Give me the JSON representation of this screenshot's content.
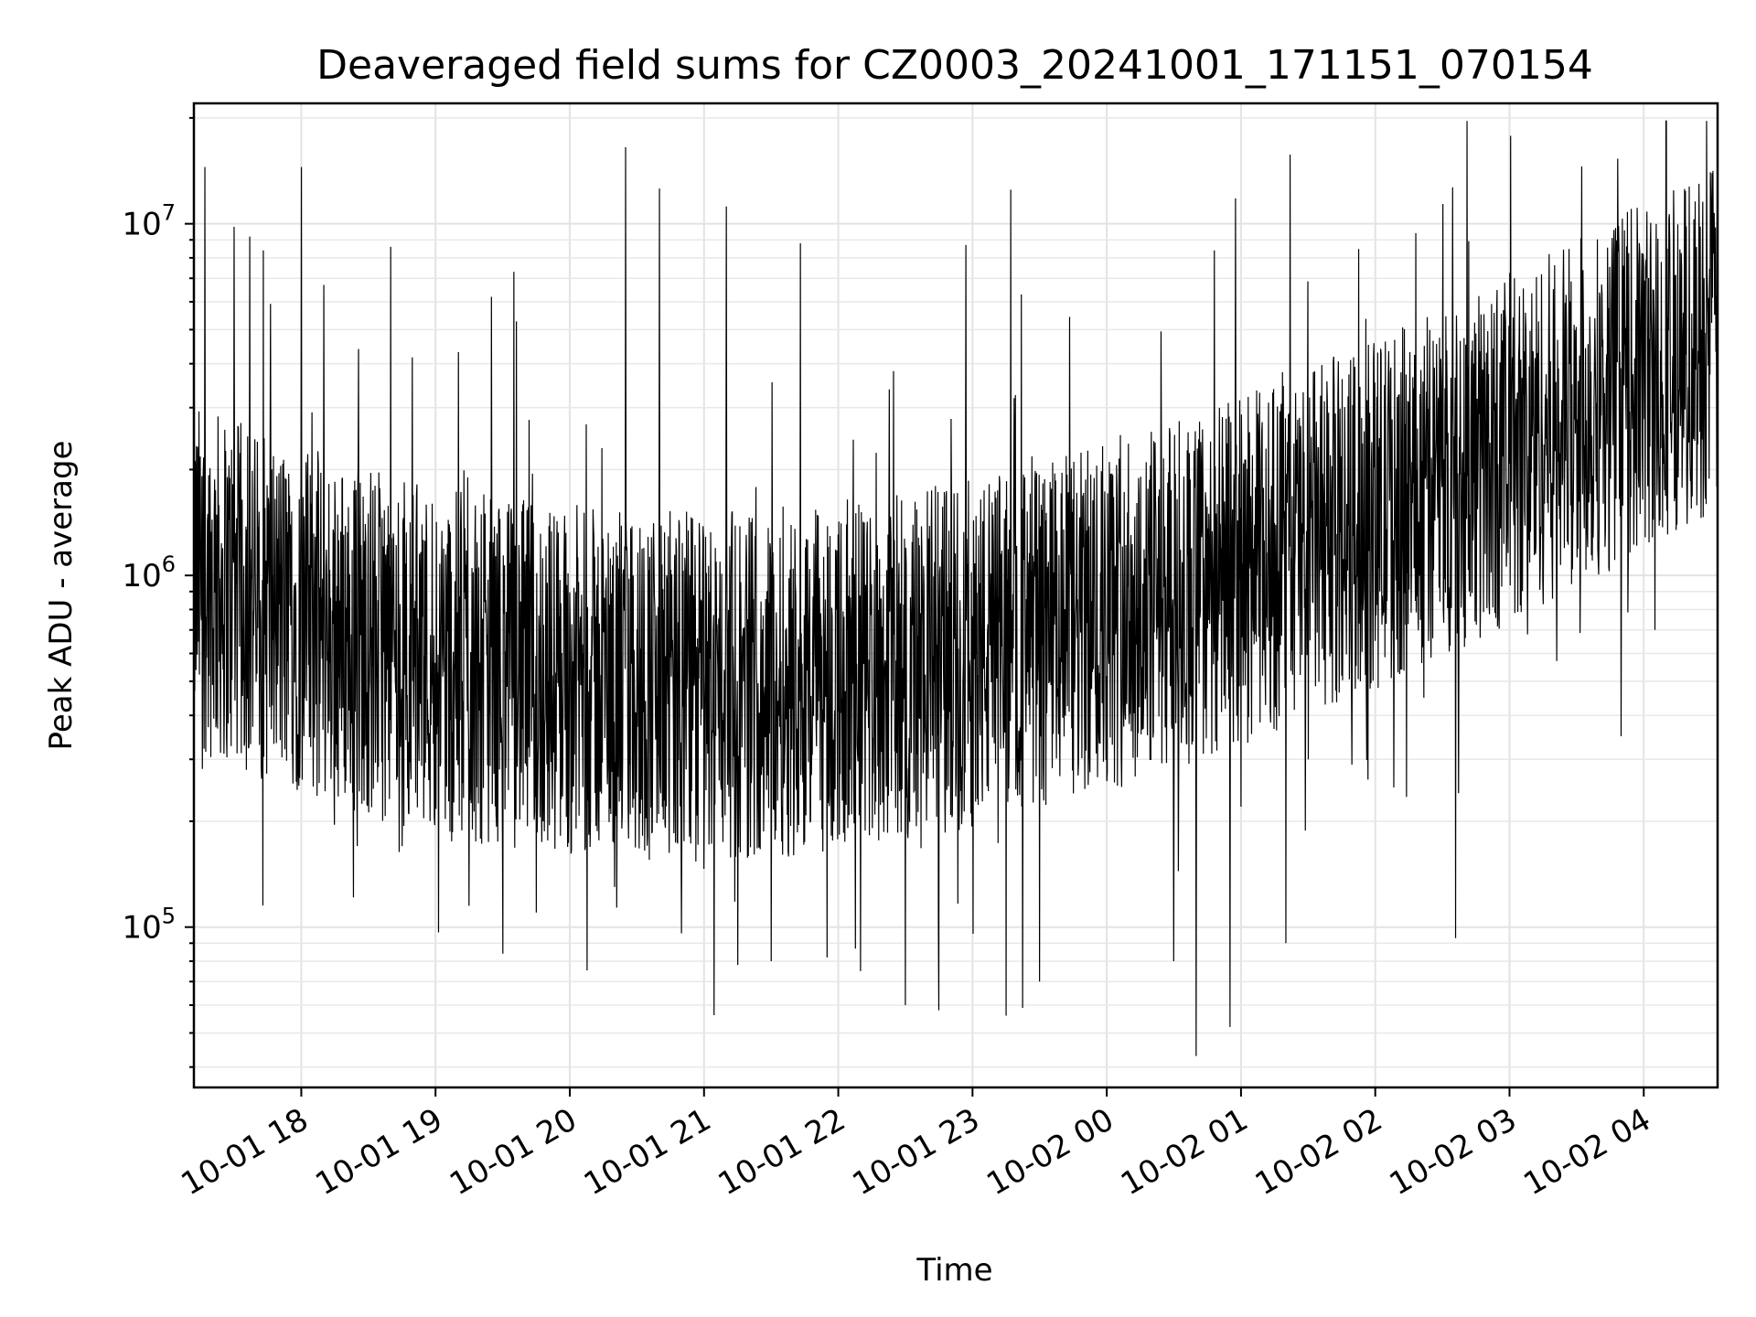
{
  "chart_data": {
    "type": "line",
    "title": "Deaveraged field sums for CZ0003_20241001_171151_070154",
    "xlabel": "Time",
    "ylabel": "Peak ADU - average",
    "yscale": "log",
    "ylim": [
      35000,
      22000000
    ],
    "xlim": [
      "2024-10-01 17:12",
      "2024-10-02 04:33"
    ],
    "grid": true,
    "x_ticks": [
      {
        "t": "2024-10-01 18:00",
        "label": "10-01 18"
      },
      {
        "t": "2024-10-01 19:00",
        "label": "10-01 19"
      },
      {
        "t": "2024-10-01 20:00",
        "label": "10-01 20"
      },
      {
        "t": "2024-10-01 21:00",
        "label": "10-01 21"
      },
      {
        "t": "2024-10-01 22:00",
        "label": "10-01 22"
      },
      {
        "t": "2024-10-01 23:00",
        "label": "10-01 23"
      },
      {
        "t": "2024-10-02 00:00",
        "label": "10-02 00"
      },
      {
        "t": "2024-10-02 01:00",
        "label": "10-02 01"
      },
      {
        "t": "2024-10-02 02:00",
        "label": "10-02 02"
      },
      {
        "t": "2024-10-02 03:00",
        "label": "10-02 03"
      },
      {
        "t": "2024-10-02 04:00",
        "label": "10-02 04"
      }
    ],
    "y_ticks": [
      {
        "value": 100000,
        "base": "10",
        "exp": "5"
      },
      {
        "value": 1000000,
        "base": "10",
        "exp": "6"
      },
      {
        "value": 10000000,
        "base": "10",
        "exp": "7"
      }
    ],
    "series": [
      {
        "color": "#000000",
        "samples_note": "dense time series; envelope values per ~10 min",
        "points": [
          [
            "2024-10-01 17:12",
            1300000
          ],
          [
            "2024-10-01 17:15",
            900000
          ],
          [
            "2024-10-01 17:17",
            14500000
          ],
          [
            "2024-10-01 17:20",
            1100000
          ],
          [
            "2024-10-01 17:25",
            1500000
          ],
          [
            "2024-10-01 17:30",
            9800000
          ],
          [
            "2024-10-01 17:33",
            1400000
          ],
          [
            "2024-10-01 17:37",
            9200000
          ],
          [
            "2024-10-01 17:40",
            1800000
          ],
          [
            "2024-10-01 17:43",
            8400000
          ],
          [
            "2024-10-01 17:50",
            400000
          ],
          [
            "2024-10-01 17:55",
            1600000
          ],
          [
            "2024-10-01 18:00",
            14500000
          ],
          [
            "2024-10-01 18:05",
            900000
          ],
          [
            "2024-10-01 18:10",
            6700000
          ],
          [
            "2024-10-01 18:20",
            1300000
          ],
          [
            "2024-10-01 18:25",
            170000
          ],
          [
            "2024-10-01 18:30",
            1500000
          ],
          [
            "2024-10-01 18:40",
            8600000
          ],
          [
            "2024-10-01 18:45",
            170000
          ],
          [
            "2024-10-01 18:55",
            1200000
          ],
          [
            "2024-10-01 19:00",
            1100000
          ],
          [
            "2024-10-01 19:15",
            115000
          ],
          [
            "2024-10-01 19:25",
            6200000
          ],
          [
            "2024-10-01 19:30",
            84000
          ],
          [
            "2024-10-01 19:35",
            7300000
          ],
          [
            "2024-10-01 19:45",
            110000
          ],
          [
            "2024-10-01 20:00",
            1000000
          ],
          [
            "2024-10-01 20:20",
            130000
          ],
          [
            "2024-10-01 20:25",
            16500000
          ],
          [
            "2024-10-01 20:30",
            900000
          ],
          [
            "2024-10-01 20:40",
            12600000
          ],
          [
            "2024-10-01 20:50",
            96000
          ],
          [
            "2024-10-01 21:00",
            900000
          ],
          [
            "2024-10-01 21:10",
            11200000
          ],
          [
            "2024-10-01 21:15",
            78000
          ],
          [
            "2024-10-01 21:30",
            80000
          ],
          [
            "2024-10-01 21:43",
            8800000
          ],
          [
            "2024-10-01 21:55",
            82000
          ],
          [
            "2024-10-01 22:00",
            700000
          ],
          [
            "2024-10-01 22:10",
            75000
          ],
          [
            "2024-10-01 22:30",
            60000
          ],
          [
            "2024-10-01 22:45",
            58000
          ],
          [
            "2024-10-01 22:57",
            8700000
          ],
          [
            "2024-10-01 23:00",
            350000
          ],
          [
            "2024-10-01 23:15",
            56000
          ],
          [
            "2024-10-01 23:17",
            12500000
          ],
          [
            "2024-10-01 23:30",
            70000
          ],
          [
            "2024-10-01 23:45",
            240000
          ],
          [
            "2024-10-02 00:00",
            260000
          ],
          [
            "2024-10-02 00:30",
            80000
          ],
          [
            "2024-10-02 00:40",
            43000
          ],
          [
            "2024-10-02 00:48",
            8400000
          ],
          [
            "2024-10-02 00:55",
            52000
          ],
          [
            "2024-10-02 01:00",
            220000
          ],
          [
            "2024-10-02 01:20",
            90000
          ],
          [
            "2024-10-02 01:30",
            300000
          ],
          [
            "2024-10-02 01:45",
            1100000
          ],
          [
            "2024-10-02 02:00",
            1200000
          ],
          [
            "2024-10-02 02:30",
            1100000
          ],
          [
            "2024-10-02 02:36",
            93000
          ],
          [
            "2024-10-02 02:45",
            1400000
          ],
          [
            "2024-10-02 03:00",
            1500000
          ],
          [
            "2024-10-02 03:20",
            1800000
          ],
          [
            "2024-10-02 03:40",
            2200000
          ],
          [
            "2024-10-02 03:55",
            5500000
          ],
          [
            "2024-10-02 04:00",
            2200000
          ],
          [
            "2024-10-02 04:05",
            700000
          ],
          [
            "2024-10-02 04:20",
            2000000
          ],
          [
            "2024-10-02 04:33",
            1700000
          ]
        ]
      }
    ]
  }
}
